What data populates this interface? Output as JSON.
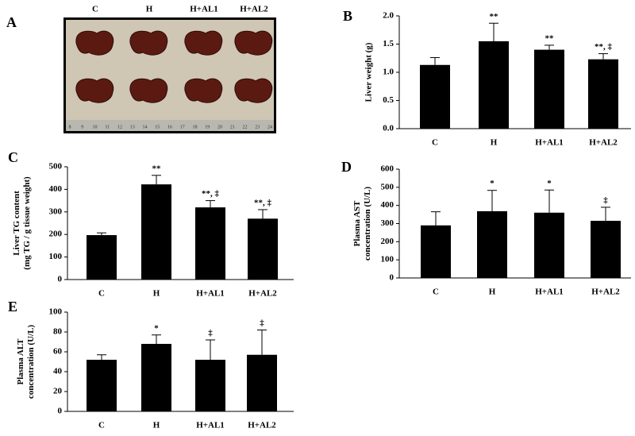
{
  "chart_data": [
    {
      "type": "image",
      "panel_label": "A",
      "categories": [
        "C",
        "H",
        "H+AL1",
        "H+AL2"
      ],
      "ruler": [
        8,
        9,
        10,
        11,
        12,
        13,
        14,
        15,
        16,
        17,
        18,
        19,
        20,
        21,
        22,
        23,
        24
      ]
    },
    {
      "type": "bar",
      "panel_label": "B",
      "ylabel": [
        "Liver weight (g)"
      ],
      "categories": [
        "C",
        "H",
        "H+AL1",
        "H+AL2"
      ],
      "values": [
        1.13,
        1.55,
        1.4,
        1.23
      ],
      "errors": [
        0.13,
        0.32,
        0.08,
        0.1
      ],
      "annotations": [
        null,
        "**",
        "**",
        "**, ‡"
      ],
      "color": "#000000",
      "ylim": [
        0,
        2
      ],
      "yticks": [
        {
          "value": 0,
          "label": "0.0"
        },
        {
          "value": 0.5,
          "label": "0.5"
        },
        {
          "value": 1,
          "label": "1.0"
        },
        {
          "value": 1.5,
          "label": "1.5"
        },
        {
          "value": 2,
          "label": "2.0"
        }
      ]
    },
    {
      "type": "bar",
      "panel_label": "C",
      "ylabel": [
        "Liver TG content",
        "(mg TG / g tissue weight)"
      ],
      "categories": [
        "C",
        "H",
        "H+AL1",
        "H+AL2"
      ],
      "values": [
        197,
        422,
        320,
        270
      ],
      "errors": [
        10,
        40,
        30,
        40
      ],
      "annotations": [
        null,
        "**",
        "**, ‡",
        "**, ‡"
      ],
      "color": "#000000",
      "ylim": [
        0,
        500
      ],
      "yticks": [
        0,
        100,
        200,
        300,
        400,
        500
      ]
    },
    {
      "type": "bar",
      "panel_label": "D",
      "ylabel": [
        "Plasma AST",
        "concentration (U/L)"
      ],
      "categories": [
        "C",
        "H",
        "H+AL1",
        "H+AL2"
      ],
      "values": [
        290,
        368,
        360,
        315
      ],
      "errors": [
        75,
        115,
        125,
        75
      ],
      "annotations": [
        null,
        "*",
        "*",
        "‡"
      ],
      "color": "#000000",
      "ylim": [
        0,
        600
      ],
      "yticks": [
        0,
        100,
        200,
        300,
        400,
        500,
        600
      ]
    },
    {
      "type": "bar",
      "panel_label": "E",
      "ylabel": [
        "Plasma ALT",
        "concentration (U/L)"
      ],
      "categories": [
        "C",
        "H",
        "H+AL1",
        "H+AL2"
      ],
      "values": [
        52,
        68,
        52,
        57
      ],
      "errors": [
        5,
        9,
        20,
        25
      ],
      "annotations": [
        null,
        "*",
        "‡",
        "‡"
      ],
      "color": "#000000",
      "ylim": [
        0,
        100
      ],
      "yticks": [
        0,
        20,
        40,
        60,
        80,
        100
      ]
    }
  ]
}
